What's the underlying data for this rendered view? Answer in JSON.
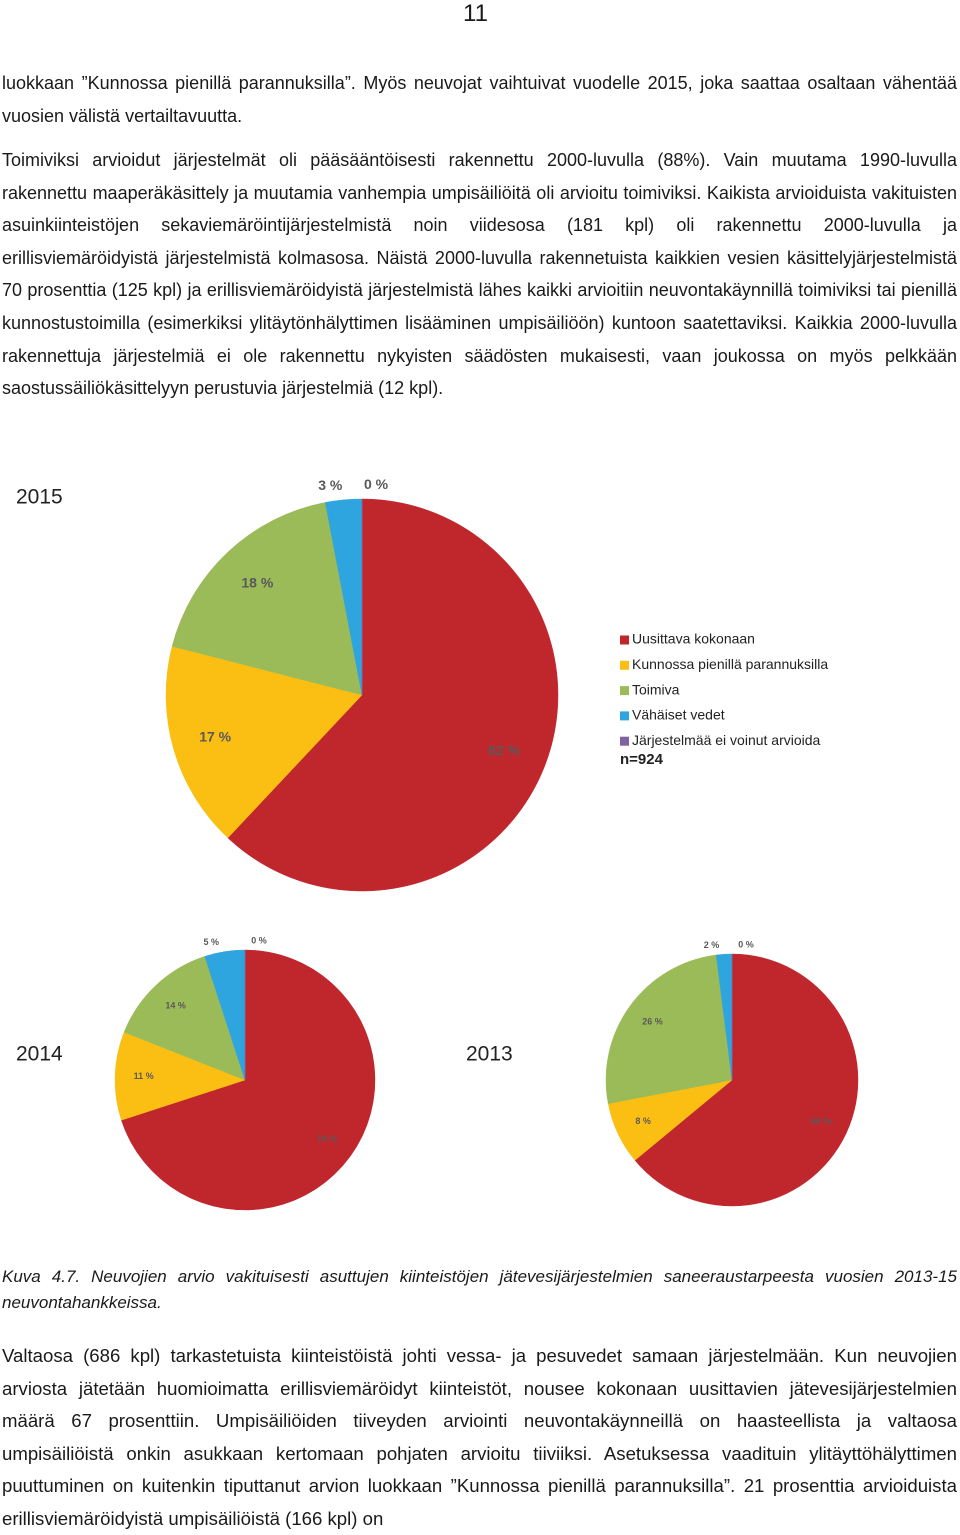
{
  "page_number": "11",
  "paragraphs": [
    "luokkaan ”Kunnossa pienillä parannuksilla”. Myös neuvojat vaihtuivat vuodelle 2015, joka saattaa osaltaan vähentää vuosien välistä vertailtavuutta.",
    "Toimiviksi arvioidut järjestelmät oli pääsääntöisesti rakennettu 2000-luvulla (88%). Vain muutama 1990-luvulla rakennettu maaperäkäsittely ja muutamia vanhempia umpisäiliöitä oli arvioitu toimiviksi. Kaikista arvioiduista vakituisten asuinkiinteistöjen sekaviemäröintijärjestelmistä noin viidesosa (181 kpl) oli rakennettu 2000-luvulla ja erillisviemäröidyistä järjestelmistä kolmasosa. Näistä 2000-luvulla rakennetuista kaikkien vesien käsittelyjärjestelmistä 70 prosenttia (125 kpl) ja erillisviemäröidyistä järjestelmistä lähes kaikki arvioitiin neuvontakäynnillä toimiviksi tai pienillä kunnostustoimilla (esimerkiksi ylitäytönhälyttimen lisääminen umpisäiliöön) kuntoon saatettaviksi. Kaikkia 2000-luvulla rakennettuja järjestelmiä ei ole rakennettu nykyisten säädösten mukaisesti, vaan joukossa on myös pelkkään saostussäiliökäsittelyyn perustuvia järjestelmiä (12 kpl)."
  ],
  "chart_data": [
    {
      "type": "pie",
      "title": "2015",
      "categories": [
        "Uusittava kokonaan",
        "Kunnossa pienillä parannuksilla",
        "Toimiva",
        "Vähäiset vedet",
        "Järjestelmää ei voinut arvioida"
      ],
      "values": [
        62,
        17,
        18,
        3,
        0
      ],
      "value_labels": [
        "62 %",
        "17 %",
        "18 %",
        "3 %",
        "0 %"
      ],
      "colors": [
        "#c0272d",
        "#fbbf14",
        "#9bbb59",
        "#2fa5e0",
        "#8064a2"
      ],
      "note": "n=924"
    },
    {
      "type": "pie",
      "title": "2014",
      "values": [
        70,
        11,
        14,
        5,
        0
      ],
      "value_labels": [
        "70 %",
        "11 %",
        "14 %",
        "5 %",
        "0 %"
      ],
      "colors": [
        "#c0272d",
        "#fbbf14",
        "#9bbb59",
        "#2fa5e0",
        "#8064a2"
      ]
    },
    {
      "type": "pie",
      "title": "2013",
      "values": [
        64,
        8,
        26,
        2,
        0
      ],
      "value_labels": [
        "64 %",
        "8 %",
        "26 %",
        "2 %",
        "0 %"
      ],
      "colors": [
        "#c0272d",
        "#fbbf14",
        "#9bbb59",
        "#2fa5e0",
        "#8064a2"
      ]
    }
  ],
  "caption": "Kuva 4.7. Neuvojien arvio vakituisesti asuttujen kiinteistöjen jätevesijärjestelmien saneeraustarpeesta vuosien 2013-15 neuvontahankkeissa.",
  "closing_paragraph": "Valtaosa (686 kpl) tarkastetuista kiinteistöistä johti vessa- ja pesuvedet samaan järjestelmään. Kun neuvojien arviosta jätetään huomioimatta erillisviemäröidyt kiinteistöt, nousee kokonaan uusittavien jätevesijärjestelmien määrä 67 prosenttiin. Umpisäiliöiden tiiveyden arviointi neuvontakäynneillä on haasteellista ja valtaosa umpisäiliöistä onkin asukkaan kertomaan pohjaten arvioitu tiiviiksi. Asetuksessa vaadituin ylitäyttöhälyttimen puuttuminen on kuitenkin tiputtanut arvion luokkaan ”Kunnossa pienillä parannuksilla”. 21 prosenttia arvioiduista erillisviemäröidyistä umpisäiliöistä (166 kpl) on"
}
